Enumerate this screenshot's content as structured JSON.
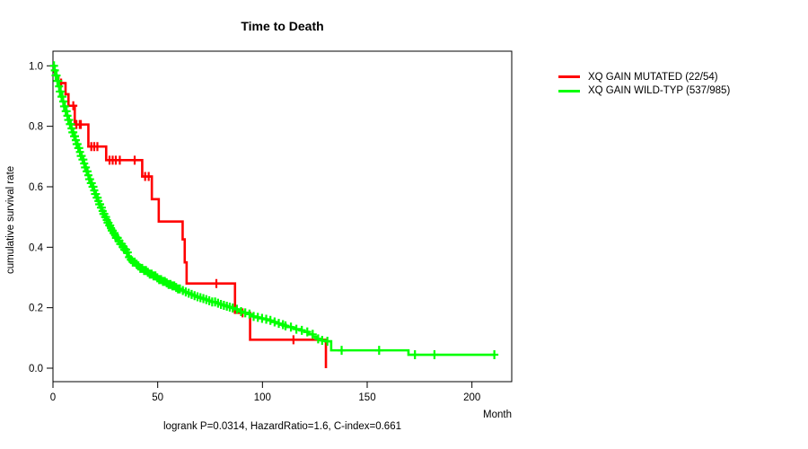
{
  "chart_data": {
    "type": "line",
    "subtype": "kaplan-meier-step-curves",
    "title": "Time to Death",
    "xlabel": "Month",
    "ylabel": "cumulative survival rate",
    "annotation": "logrank P=0.0314, HazardRatio=1.6, C-index=0.661",
    "xlim": [
      0,
      219
    ],
    "ylim": [
      0.0,
      1.0
    ],
    "xticks": [
      0,
      50,
      100,
      150,
      200
    ],
    "yticks": [
      0.0,
      0.2,
      0.4,
      0.6,
      0.8,
      1.0
    ],
    "ytick_labels": [
      "0.0",
      "0.2",
      "0.4",
      "0.6",
      "0.8",
      "1.0"
    ],
    "grid": false,
    "legend_position": "outside-right",
    "series": [
      {
        "name": "XQ GAIN MUTATED (22/54)",
        "color": "#ff0000",
        "steps": [
          [
            0,
            1.0
          ],
          [
            0.7,
            0.981
          ],
          [
            1.6,
            0.962
          ],
          [
            2.6,
            0.943
          ],
          [
            6,
            0.906
          ],
          [
            7.4,
            0.868
          ],
          [
            10.4,
            0.806
          ],
          [
            16.9,
            0.733
          ],
          [
            25.4,
            0.688
          ],
          [
            42.6,
            0.634
          ],
          [
            47.2,
            0.559
          ],
          [
            50.5,
            0.485
          ],
          [
            61.9,
            0.426
          ],
          [
            62.9,
            0.35
          ],
          [
            63.8,
            0.28
          ],
          [
            86.9,
            0.183
          ],
          [
            94.1,
            0.094
          ],
          [
            130.3,
            0.0
          ]
        ],
        "end_time": 130.3,
        "censor_times": [
          3.9,
          9.7,
          11.2,
          12.8,
          13.3,
          18.3,
          19.7,
          21.2,
          27,
          28.5,
          30,
          31.9,
          39,
          44,
          45.7,
          78,
          90.5,
          114.8
        ],
        "censor_ranges": []
      },
      {
        "name": "XQ GAIN WILD-TYP (537/985)",
        "color": "#00ff00",
        "steps": [
          [
            0,
            1.0
          ],
          [
            0.7,
            0.985
          ],
          [
            1.3,
            0.968
          ],
          [
            2,
            0.95
          ],
          [
            2.7,
            0.932
          ],
          [
            3.3,
            0.915
          ],
          [
            4,
            0.898
          ],
          [
            4.7,
            0.882
          ],
          [
            5.3,
            0.866
          ],
          [
            6,
            0.85
          ],
          [
            6.7,
            0.835
          ],
          [
            7.3,
            0.821
          ],
          [
            8,
            0.807
          ],
          [
            8.7,
            0.793
          ],
          [
            9.3,
            0.78
          ],
          [
            10,
            0.767
          ],
          [
            10.7,
            0.754
          ],
          [
            11.3,
            0.741
          ],
          [
            12,
            0.728
          ],
          [
            12.7,
            0.715
          ],
          [
            13.3,
            0.702
          ],
          [
            14,
            0.69
          ],
          [
            14.7,
            0.677
          ],
          [
            15.3,
            0.664
          ],
          [
            16,
            0.651
          ],
          [
            16.7,
            0.638
          ],
          [
            17.3,
            0.625
          ],
          [
            18,
            0.612
          ],
          [
            18.7,
            0.6
          ],
          [
            19.3,
            0.588
          ],
          [
            20,
            0.576
          ],
          [
            20.7,
            0.564
          ],
          [
            21.3,
            0.553
          ],
          [
            22,
            0.542
          ],
          [
            22.7,
            0.531
          ],
          [
            23.3,
            0.52
          ],
          [
            24,
            0.51
          ],
          [
            24.7,
            0.5
          ],
          [
            25.3,
            0.49
          ],
          [
            26,
            0.481
          ],
          [
            26.7,
            0.472
          ],
          [
            27.3,
            0.463
          ],
          [
            28,
            0.455
          ],
          [
            28.7,
            0.447
          ],
          [
            29.3,
            0.439
          ],
          [
            30,
            0.431
          ],
          [
            31,
            0.421
          ],
          [
            32,
            0.411
          ],
          [
            33,
            0.401
          ],
          [
            34,
            0.392
          ],
          [
            35,
            0.383
          ],
          [
            36,
            0.367
          ],
          [
            37,
            0.359
          ],
          [
            38,
            0.351
          ],
          [
            39,
            0.344
          ],
          [
            40,
            0.338
          ],
          [
            41.5,
            0.33
          ],
          [
            43,
            0.323
          ],
          [
            44.5,
            0.317
          ],
          [
            46,
            0.311
          ],
          [
            47.5,
            0.305
          ],
          [
            49,
            0.299
          ],
          [
            50.5,
            0.293
          ],
          [
            52,
            0.287
          ],
          [
            53.5,
            0.282
          ],
          [
            55,
            0.277
          ],
          [
            56.5,
            0.272
          ],
          [
            58,
            0.267
          ],
          [
            59.5,
            0.262
          ],
          [
            61,
            0.257
          ],
          [
            62.5,
            0.252
          ],
          [
            64,
            0.248
          ],
          [
            65.5,
            0.244
          ],
          [
            67,
            0.24
          ],
          [
            68.5,
            0.236
          ],
          [
            70,
            0.233
          ],
          [
            71.5,
            0.23
          ],
          [
            73,
            0.227
          ],
          [
            74.5,
            0.223
          ],
          [
            76,
            0.219
          ],
          [
            77.5,
            0.215
          ],
          [
            79,
            0.211
          ],
          [
            80.5,
            0.208
          ],
          [
            82,
            0.205
          ],
          [
            83.5,
            0.202
          ],
          [
            85,
            0.199
          ],
          [
            86.5,
            0.195
          ],
          [
            88,
            0.191
          ],
          [
            89.5,
            0.187
          ],
          [
            91,
            0.183
          ],
          [
            92.5,
            0.179
          ],
          [
            94,
            0.175
          ],
          [
            95.5,
            0.171
          ],
          [
            97,
            0.168
          ],
          [
            98.5,
            0.165
          ],
          [
            100,
            0.162
          ],
          [
            102,
            0.158
          ],
          [
            104,
            0.153
          ],
          [
            106,
            0.148
          ],
          [
            108,
            0.144
          ],
          [
            110,
            0.14
          ],
          [
            112,
            0.136
          ],
          [
            114,
            0.133
          ],
          [
            116,
            0.129
          ],
          [
            118,
            0.125
          ],
          [
            120,
            0.12
          ],
          [
            122,
            0.112
          ],
          [
            124,
            0.104
          ],
          [
            126,
            0.097
          ],
          [
            128,
            0.092
          ],
          [
            130,
            0.089
          ],
          [
            132.8,
            0.059
          ],
          [
            169.7,
            0.0445
          ]
        ],
        "end_time": 210.7,
        "censor_times": [
          128.5,
          131,
          137.8,
          155.7,
          172.8,
          182.1,
          210.7
        ],
        "censor_ranges": [
          {
            "from": 0.5,
            "to": 36,
            "step": 0.4
          },
          {
            "from": 36.3,
            "to": 60,
            "step": 0.9
          },
          {
            "from": 60.6,
            "to": 85,
            "step": 1.4
          },
          {
            "from": 85.8,
            "to": 110,
            "step": 2.0
          },
          {
            "from": 111,
            "to": 127,
            "step": 2.6
          }
        ]
      }
    ]
  }
}
